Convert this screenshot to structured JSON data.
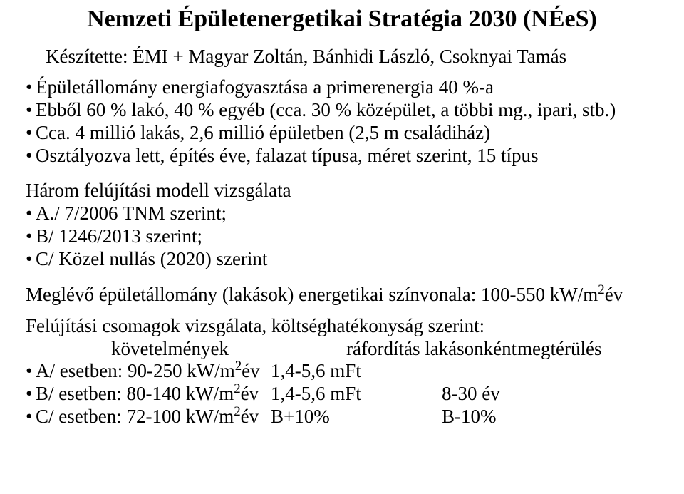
{
  "title": "Nemzeti Épületenergetikai Stratégia 2030 (NÉeS)",
  "subtitle": "Készítette: ÉMI + Magyar Zoltán, Bánhidi László, Csoknyai Tamás",
  "bullets1": [
    "Épületállomány energiafogyasztása a primerenergia 40 %-a",
    "Ebből 60 % lakó, 40 % egyéb (cca. 30 % középület, a többi mg., ipari, stb.)",
    "Cca. 4 millió lakás, 2,6 millió épületben (2,5 m családiház)",
    "Osztályozva lett, építés éve, falazat típusa, méret szerint, 15 típus"
  ],
  "section_a_heading": "Három felújítási modell vizsgálata",
  "bullets2": [
    "A./ 7/2006 TNM szerint;",
    "B/ 1246/2013 szerint;",
    "C/ Közel nullás (2020) szerint"
  ],
  "energetics_line_pre": "Meglévő épületállomány (lakások) energetikai színvonala: 100-550 kW/m",
  "energetics_line_sup": "2",
  "energetics_line_post": "év",
  "packages_line": "Felújítási csomagok vizsgálata, költséghatékonyság szerint:",
  "table_header": {
    "c1": "követelmények",
    "c2": "ráfordítás lakásonként",
    "c3": "megtérülés"
  },
  "rows": [
    {
      "a_pre": "A/ esetben: 90-250 kW/m",
      "a_sup": "2",
      "a_post": "év",
      "b": "1,4-5,6 mFt",
      "c": ""
    },
    {
      "a_pre": "B/ esetben: 80-140 kW/m",
      "a_sup": "2",
      "a_post": "év",
      "b": "1,4-5,6 mFt",
      "c": "8-30 év"
    },
    {
      "a_pre": "C/ esetben: 72-100 kW/m",
      "a_sup": "2",
      "a_post": "év",
      "b": "B+10%",
      "c": "B-10%"
    }
  ]
}
